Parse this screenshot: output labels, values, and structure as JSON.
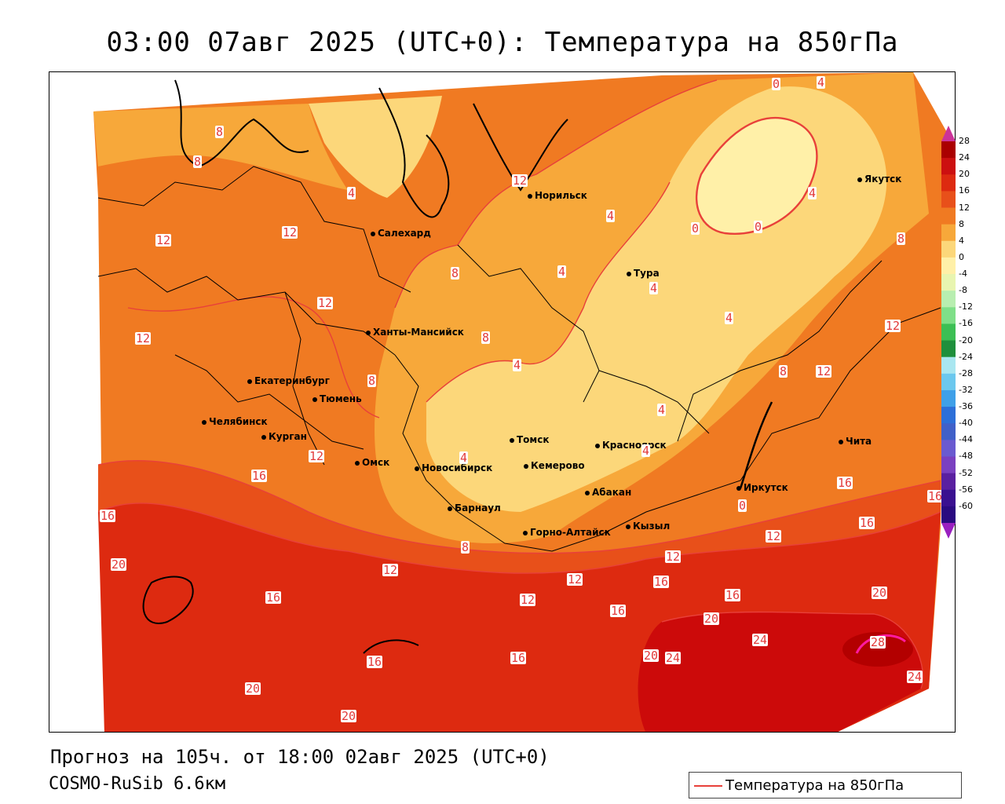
{
  "title": "03:00 07авг 2025 (UTC+0): Температура на 850гПа",
  "forecast_line": "Прогноз на 105ч. от 18:00 02авг 2025 (UTC+0)",
  "model_line": "COSMO-RuSib 6.6км",
  "legend": {
    "label": "Температура на 850гПа",
    "line_color": "#e8403a"
  },
  "colors": {
    "t28": "#b30000",
    "t24": "#cc0a0a",
    "t20": "#dd2a10",
    "t16": "#e8501a",
    "t12": "#f07a22",
    "t8": "#f7a83a",
    "t4": "#fcd77a",
    "t0": "#fff0a8",
    "contour": "#e8403a",
    "border": "#000000"
  },
  "colorbar": {
    "ticks": [
      "28",
      "24",
      "20",
      "16",
      "12",
      "8",
      "4",
      "0",
      "-4",
      "-8",
      "-12",
      "-16",
      "-20",
      "-24",
      "-28",
      "-32",
      "-36",
      "-40",
      "-44",
      "-48",
      "-52",
      "-56",
      "-60"
    ],
    "colors": [
      "#aa0000",
      "#cc1010",
      "#dd2a10",
      "#e8501a",
      "#f07a22",
      "#f7a83a",
      "#fcd77a",
      "#fff0a8",
      "#e8f5b0",
      "#b8eeb0",
      "#7fdf88",
      "#3cbf54",
      "#1f8f3c",
      "#a9e6f0",
      "#6cc8ee",
      "#3fa0e8",
      "#2d6fd8",
      "#4060c8",
      "#6a5ad0",
      "#7a40c0",
      "#5a20a0",
      "#3a1090",
      "#2a0a80"
    ],
    "top_arrow_color": "#cc3399",
    "bottom_arrow_color": "#9a20c0"
  },
  "cities": [
    {
      "name": "Норильск"
    },
    {
      "name": "Якутск"
    },
    {
      "name": "Салехард"
    },
    {
      "name": "Тура"
    },
    {
      "name": "Ханты-Мансийск"
    },
    {
      "name": "Екатеринбург"
    },
    {
      "name": "Тюмень"
    },
    {
      "name": "Челябинск"
    },
    {
      "name": "Курган"
    },
    {
      "name": "Омск"
    },
    {
      "name": "Томск"
    },
    {
      "name": "Красноярск"
    },
    {
      "name": "Новосибирск"
    },
    {
      "name": "Кемерово"
    },
    {
      "name": "Абакан"
    },
    {
      "name": "Иркутск"
    },
    {
      "name": "Чита"
    },
    {
      "name": "Барнаул"
    },
    {
      "name": "Горно-Алтайск"
    },
    {
      "name": "Кызыл"
    }
  ],
  "contour_labels": [
    "0",
    "4",
    "8",
    "12",
    "16",
    "20",
    "24",
    "28"
  ]
}
